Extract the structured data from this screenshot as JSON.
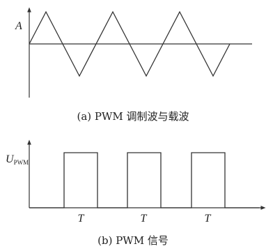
{
  "panel_a": {
    "amplitude_label": "A",
    "caption": "(a) PWM 调制波与载波",
    "carrier_peaks": 3
  },
  "panel_b": {
    "ylabel_main": "U",
    "ylabel_sub": "PWM",
    "pulse_labels": [
      "T",
      "T",
      "T"
    ],
    "caption": "(b) PWM 信号",
    "pulse_count": 3
  }
}
